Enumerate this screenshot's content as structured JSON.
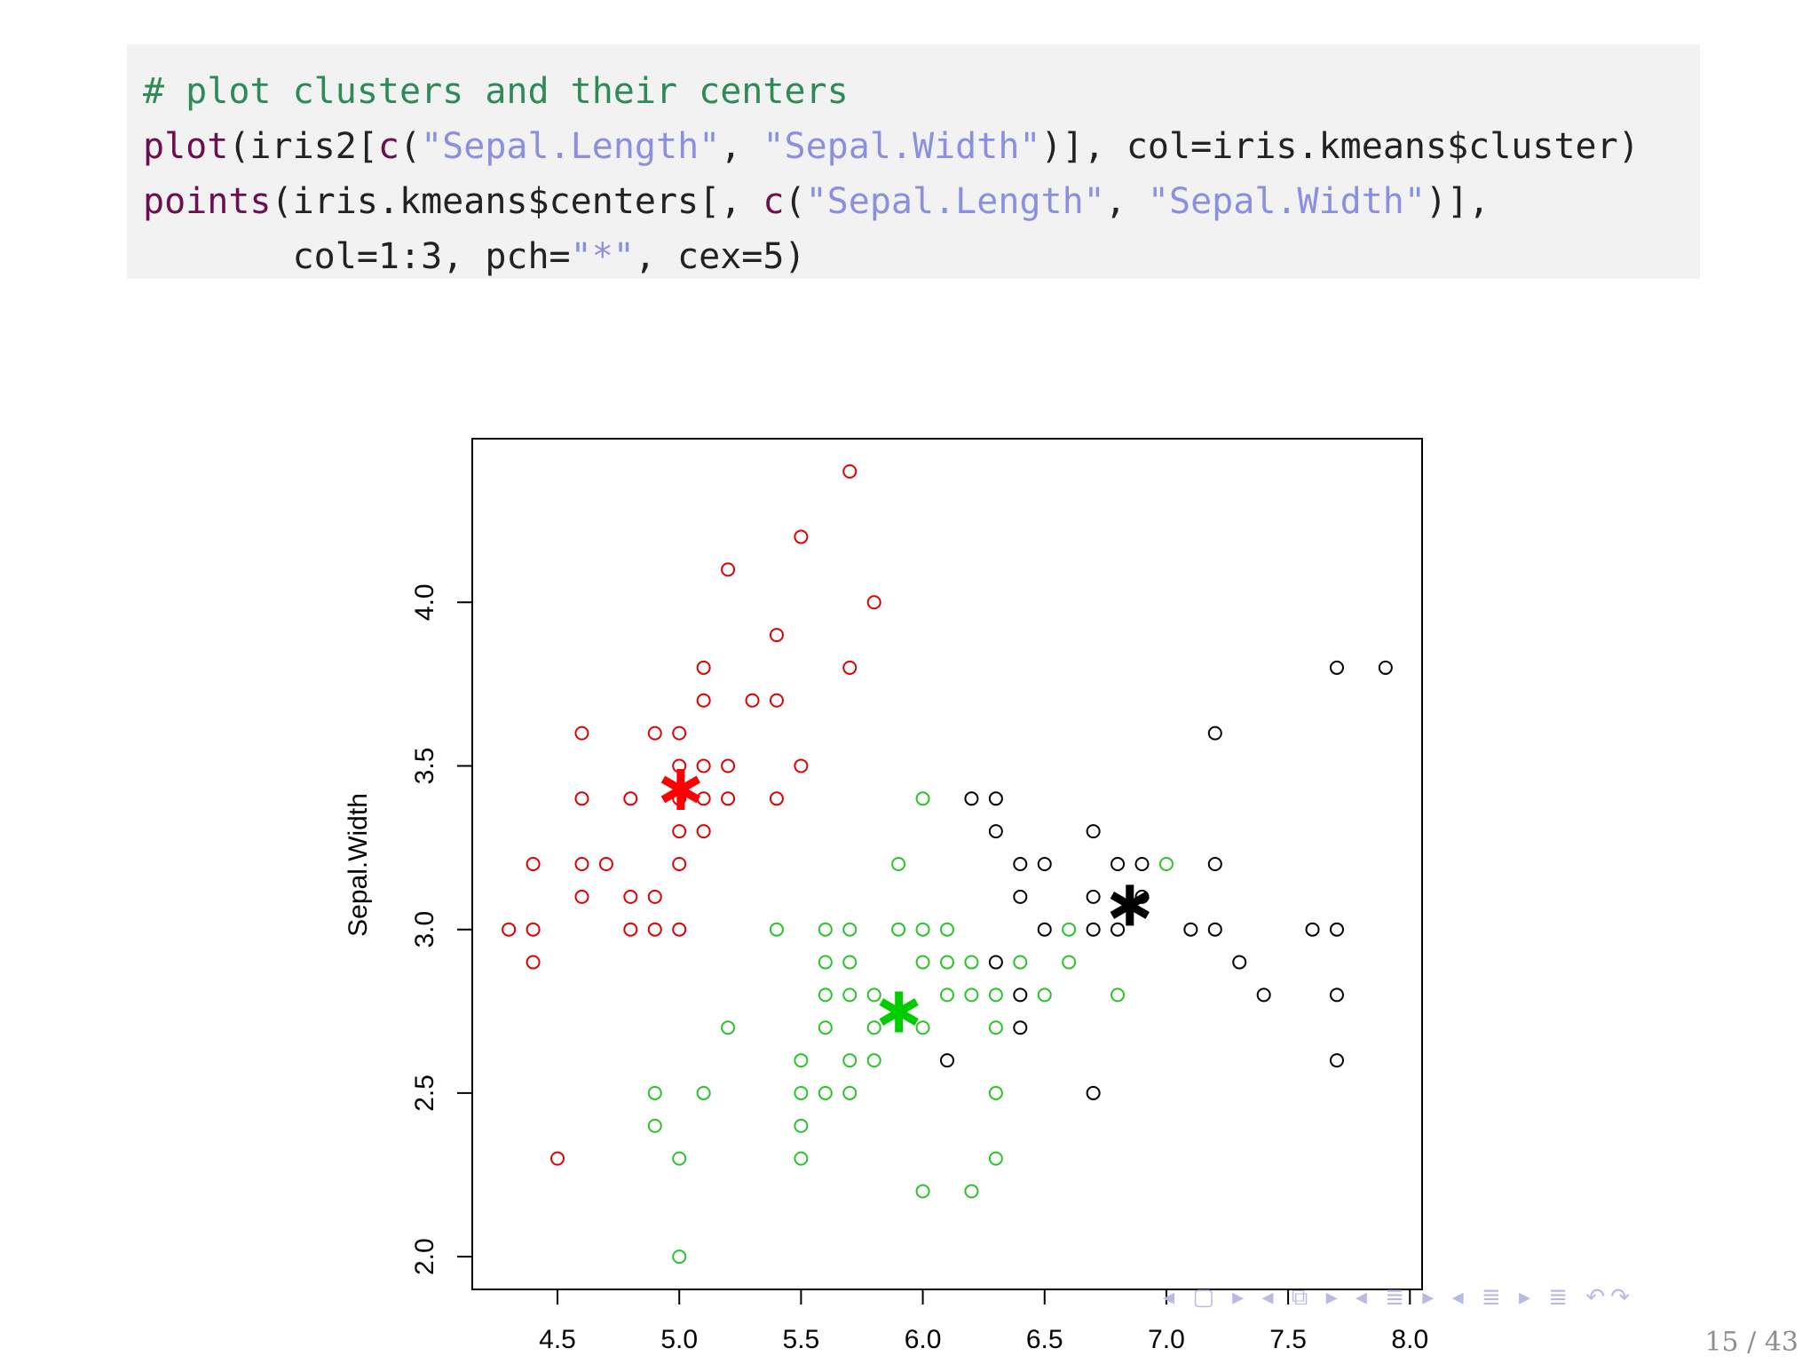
{
  "code": {
    "lines": [
      [
        {
          "cls": "c-comment",
          "text": "# plot clusters and their centers"
        }
      ],
      [
        {
          "cls": "c-fn",
          "text": "plot"
        },
        {
          "cls": "",
          "text": "(iris2["
        },
        {
          "cls": "c-fn",
          "text": "c"
        },
        {
          "cls": "",
          "text": "("
        },
        {
          "cls": "c-str",
          "text": "\"Sepal.Length\""
        },
        {
          "cls": "",
          "text": ", "
        },
        {
          "cls": "c-str",
          "text": "\"Sepal.Width\""
        },
        {
          "cls": "",
          "text": ")], col=iris.kmeans$cluster)"
        }
      ],
      [
        {
          "cls": "c-fn",
          "text": "points"
        },
        {
          "cls": "",
          "text": "(iris.kmeans$centers[, "
        },
        {
          "cls": "c-fn",
          "text": "c"
        },
        {
          "cls": "",
          "text": "("
        },
        {
          "cls": "c-str",
          "text": "\"Sepal.Length\""
        },
        {
          "cls": "",
          "text": ", "
        },
        {
          "cls": "c-str",
          "text": "\"Sepal.Width\""
        },
        {
          "cls": "",
          "text": ")],"
        }
      ],
      [
        {
          "cls": "",
          "text": "       col=1:3, pch="
        },
        {
          "cls": "c-str",
          "text": "\"*\""
        },
        {
          "cls": "",
          "text": ", cex=5)"
        }
      ]
    ]
  },
  "chart_data": {
    "type": "scatter",
    "xlabel": "",
    "ylabel": "Sepal.Width",
    "xlim": [
      4.15,
      8.05
    ],
    "ylim": [
      1.9,
      4.5
    ],
    "x_ticks": [
      "4.5",
      "5.0",
      "5.5",
      "6.0",
      "6.5",
      "7.0",
      "7.5",
      "8.0"
    ],
    "y_ticks": [
      "2.0",
      "2.5",
      "3.0",
      "3.5",
      "4.0"
    ],
    "grid": false,
    "series": [
      {
        "color": "#df0000",
        "points": [
          [
            5.7,
            4.4
          ],
          [
            5.5,
            4.2
          ],
          [
            5.2,
            4.1
          ],
          [
            5.8,
            4.0
          ],
          [
            5.4,
            3.9
          ],
          [
            5.1,
            3.8
          ],
          [
            5.7,
            3.8
          ],
          [
            5.1,
            3.7
          ],
          [
            5.3,
            3.7
          ],
          [
            5.4,
            3.7
          ],
          [
            4.6,
            3.6
          ],
          [
            4.9,
            3.6
          ],
          [
            5.0,
            3.6
          ],
          [
            5.1,
            3.5
          ],
          [
            5.2,
            3.5
          ],
          [
            5.5,
            3.5
          ],
          [
            5.0,
            3.5
          ],
          [
            4.6,
            3.4
          ],
          [
            4.8,
            3.4
          ],
          [
            5.0,
            3.4
          ],
          [
            5.1,
            3.4
          ],
          [
            5.2,
            3.4
          ],
          [
            5.4,
            3.4
          ],
          [
            5.0,
            3.3
          ],
          [
            5.1,
            3.3
          ],
          [
            4.4,
            3.2
          ],
          [
            4.6,
            3.2
          ],
          [
            4.7,
            3.2
          ],
          [
            5.0,
            3.2
          ],
          [
            4.6,
            3.1
          ],
          [
            4.8,
            3.1
          ],
          [
            4.9,
            3.1
          ],
          [
            4.3,
            3.0
          ],
          [
            4.4,
            3.0
          ],
          [
            4.8,
            3.0
          ],
          [
            4.9,
            3.0
          ],
          [
            5.0,
            3.0
          ],
          [
            4.4,
            2.9
          ],
          [
            4.5,
            2.3
          ]
        ]
      },
      {
        "color": "#28c528",
        "points": [
          [
            6.0,
            3.4
          ],
          [
            5.9,
            3.2
          ],
          [
            7.0,
            3.2
          ],
          [
            5.4,
            3.0
          ],
          [
            5.6,
            3.0
          ],
          [
            5.7,
            3.0
          ],
          [
            5.9,
            3.0
          ],
          [
            6.0,
            3.0
          ],
          [
            6.1,
            3.0
          ],
          [
            5.6,
            2.9
          ],
          [
            5.7,
            2.9
          ],
          [
            6.0,
            2.9
          ],
          [
            6.1,
            2.9
          ],
          [
            6.2,
            2.9
          ],
          [
            6.4,
            2.9
          ],
          [
            6.6,
            2.9
          ],
          [
            6.6,
            3.0
          ],
          [
            5.6,
            2.8
          ],
          [
            5.7,
            2.8
          ],
          [
            5.8,
            2.8
          ],
          [
            6.1,
            2.8
          ],
          [
            6.2,
            2.8
          ],
          [
            6.3,
            2.8
          ],
          [
            6.5,
            2.8
          ],
          [
            6.8,
            2.8
          ],
          [
            5.2,
            2.7
          ],
          [
            5.6,
            2.7
          ],
          [
            5.8,
            2.7
          ],
          [
            6.0,
            2.7
          ],
          [
            6.3,
            2.7
          ],
          [
            5.5,
            2.6
          ],
          [
            5.7,
            2.6
          ],
          [
            5.8,
            2.6
          ],
          [
            4.9,
            2.5
          ],
          [
            5.1,
            2.5
          ],
          [
            5.5,
            2.5
          ],
          [
            5.6,
            2.5
          ],
          [
            5.7,
            2.5
          ],
          [
            6.3,
            2.5
          ],
          [
            4.9,
            2.4
          ],
          [
            5.5,
            2.4
          ],
          [
            5.0,
            2.3
          ],
          [
            5.5,
            2.3
          ],
          [
            6.3,
            2.3
          ],
          [
            6.0,
            2.2
          ],
          [
            6.2,
            2.2
          ],
          [
            5.0,
            2.0
          ]
        ]
      },
      {
        "color": "#000000",
        "points": [
          [
            7.7,
            3.8
          ],
          [
            7.9,
            3.8
          ],
          [
            7.2,
            3.6
          ],
          [
            6.2,
            3.4
          ],
          [
            6.3,
            3.4
          ],
          [
            6.3,
            3.3
          ],
          [
            6.7,
            3.3
          ],
          [
            6.4,
            3.2
          ],
          [
            6.5,
            3.2
          ],
          [
            6.8,
            3.2
          ],
          [
            6.9,
            3.2
          ],
          [
            7.2,
            3.2
          ],
          [
            6.4,
            3.1
          ],
          [
            6.7,
            3.1
          ],
          [
            6.9,
            3.1
          ],
          [
            6.5,
            3.0
          ],
          [
            6.7,
            3.0
          ],
          [
            6.8,
            3.0
          ],
          [
            7.1,
            3.0
          ],
          [
            7.2,
            3.0
          ],
          [
            7.6,
            3.0
          ],
          [
            7.7,
            3.0
          ],
          [
            6.3,
            2.9
          ],
          [
            7.3,
            2.9
          ],
          [
            6.4,
            2.8
          ],
          [
            7.4,
            2.8
          ],
          [
            7.7,
            2.8
          ],
          [
            6.4,
            2.7
          ],
          [
            6.1,
            2.6
          ],
          [
            7.7,
            2.6
          ],
          [
            6.7,
            2.5
          ]
        ]
      }
    ],
    "centers": [
      {
        "x": 5.006,
        "y": 3.428,
        "color": "#ff0000"
      },
      {
        "x": 5.902,
        "y": 2.748,
        "color": "#00cc00"
      },
      {
        "x": 6.85,
        "y": 3.074,
        "color": "#000000"
      }
    ]
  },
  "footer": {
    "nav_icons": "◂ ▢ ▸  ◂ ⧉ ▸  ◂ ≣ ▸  ◂ ≣ ▸   ≣   ↶↷",
    "page": "15 / 43"
  }
}
